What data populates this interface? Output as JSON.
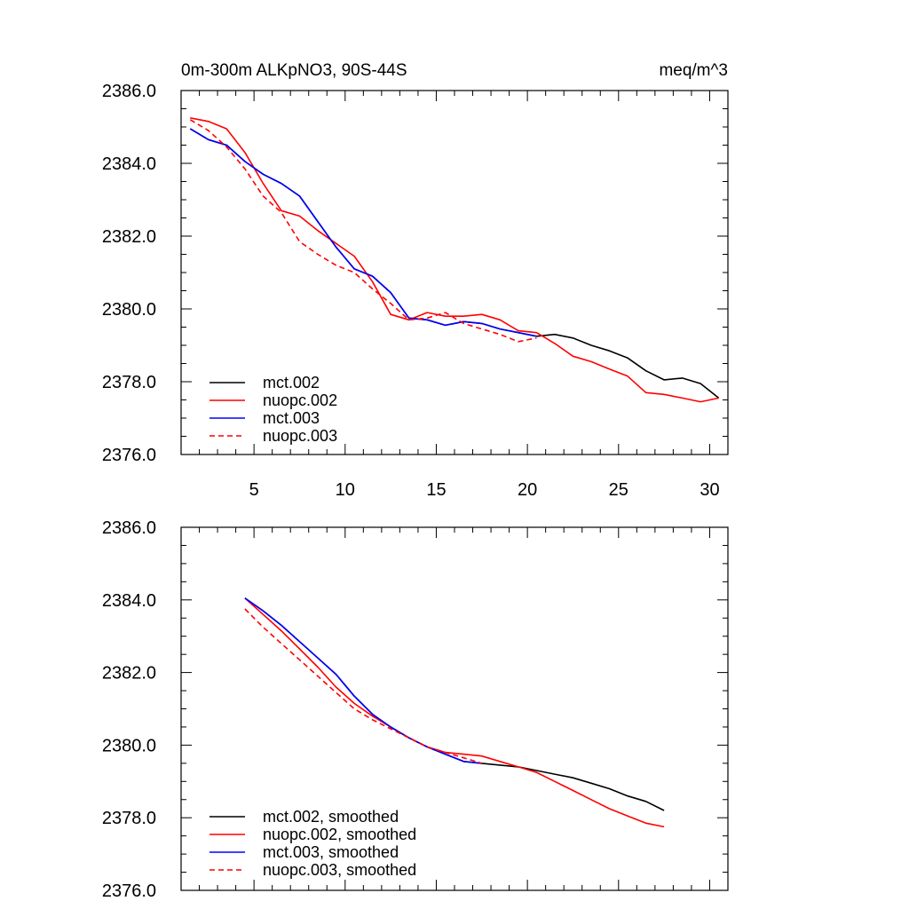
{
  "chart_data": [
    {
      "type": "line",
      "title_left": "0m-300m ALKpNO3, 90S-44S",
      "title_right": "meq/m^3",
      "xlim": [
        1,
        31
      ],
      "ylim": [
        2376,
        2386
      ],
      "x_ticks": [
        5,
        10,
        15,
        20,
        25,
        30
      ],
      "x_tick_labels": [
        "5",
        "10",
        "15",
        "20",
        "25",
        "30"
      ],
      "y_ticks": [
        2376,
        2378,
        2380,
        2382,
        2384,
        2386
      ],
      "y_tick_labels": [
        "2376.0",
        "2378.0",
        "2380.0",
        "2382.0",
        "2384.0",
        "2386.0"
      ],
      "legend_position": "bottom-left",
      "series": [
        {
          "name": "mct.002",
          "color": "#000000",
          "dash": "solid",
          "x": [
            1.5,
            2.5,
            3.5,
            4.5,
            5.5,
            6.5,
            7.5,
            8.5,
            9.5,
            10.5,
            11.5,
            12.5,
            13.5,
            14.5,
            15.5,
            16.5,
            17.5,
            18.5,
            19.5,
            20.5,
            21.5,
            22.5,
            23.5,
            24.5,
            25.5,
            26.5,
            27.5,
            28.5,
            29.5,
            30.5
          ],
          "y": [
            2384.95,
            2384.65,
            2384.5,
            2384.05,
            2383.7,
            2383.45,
            2383.1,
            2382.4,
            2381.7,
            2381.1,
            2380.9,
            2380.45,
            2379.75,
            2379.7,
            2379.55,
            2379.65,
            2379.6,
            2379.45,
            2379.35,
            2379.25,
            2379.3,
            2379.2,
            2379.0,
            2378.85,
            2378.65,
            2378.3,
            2378.05,
            2378.1,
            2377.95,
            2377.55
          ]
        },
        {
          "name": "nuopc.002",
          "color": "#ff0000",
          "dash": "solid",
          "x": [
            1.5,
            2.5,
            3.5,
            4.5,
            5.5,
            6.5,
            7.5,
            8.5,
            9.5,
            10.5,
            11.5,
            12.5,
            13.5,
            14.5,
            15.5,
            16.5,
            17.5,
            18.5,
            19.5,
            20.5,
            21.5,
            22.5,
            23.5,
            24.5,
            25.5,
            26.5,
            27.5,
            28.5,
            29.5,
            30.5
          ],
          "y": [
            2385.25,
            2385.15,
            2384.95,
            2384.3,
            2383.45,
            2382.7,
            2382.55,
            2382.15,
            2381.8,
            2381.45,
            2380.75,
            2379.85,
            2379.7,
            2379.9,
            2379.8,
            2379.8,
            2379.85,
            2379.7,
            2379.4,
            2379.35,
            2379.05,
            2378.7,
            2378.55,
            2378.35,
            2378.15,
            2377.7,
            2377.65,
            2377.55,
            2377.45,
            2377.55
          ]
        },
        {
          "name": "mct.003",
          "color": "#0000ff",
          "dash": "solid",
          "x": [
            1.5,
            2.5,
            3.5,
            4.5,
            5.5,
            6.5,
            7.5,
            8.5,
            9.5,
            10.5,
            11.5,
            12.5,
            13.5,
            14.5,
            15.5,
            16.5,
            17.5,
            18.5,
            19.5,
            20.5
          ],
          "y": [
            2384.95,
            2384.65,
            2384.5,
            2384.05,
            2383.7,
            2383.45,
            2383.1,
            2382.4,
            2381.7,
            2381.1,
            2380.9,
            2380.45,
            2379.75,
            2379.7,
            2379.55,
            2379.65,
            2379.6,
            2379.45,
            2379.35,
            2379.25
          ]
        },
        {
          "name": "nuopc.003",
          "color": "#ff0000",
          "dash": "dashed",
          "x": [
            1.5,
            2.5,
            3.5,
            4.5,
            5.5,
            6.5,
            7.5,
            8.5,
            9.5,
            10.5,
            11.5,
            12.5,
            13.5,
            14.5,
            15.5,
            16.5,
            17.5,
            18.5,
            19.5,
            20.5
          ],
          "y": [
            2385.2,
            2384.9,
            2384.45,
            2383.85,
            2383.1,
            2382.65,
            2381.85,
            2381.5,
            2381.2,
            2381.0,
            2380.55,
            2380.15,
            2379.7,
            2379.75,
            2379.9,
            2379.6,
            2379.45,
            2379.3,
            2379.1,
            2379.2
          ]
        }
      ]
    },
    {
      "type": "line",
      "xlim": [
        1,
        31
      ],
      "ylim": [
        2376,
        2386
      ],
      "x_ticks": [
        5,
        10,
        15,
        20,
        25,
        30
      ],
      "y_ticks": [
        2376,
        2378,
        2380,
        2382,
        2384,
        2386
      ],
      "y_tick_labels": [
        "2376.0",
        "2378.0",
        "2380.0",
        "2382.0",
        "2384.0",
        "2386.0"
      ],
      "legend_position": "bottom-left",
      "series": [
        {
          "name": "mct.002, smoothed",
          "color": "#000000",
          "dash": "solid",
          "x": [
            4.5,
            5.5,
            6.5,
            7.5,
            8.5,
            9.5,
            10.5,
            11.5,
            12.5,
            13.5,
            14.5,
            15.5,
            16.5,
            17.5,
            18.5,
            19.5,
            20.5,
            21.5,
            22.5,
            23.5,
            24.5,
            25.5,
            26.5,
            27.5
          ],
          "y": [
            2384.05,
            2383.7,
            2383.3,
            2382.85,
            2382.4,
            2381.95,
            2381.35,
            2380.85,
            2380.5,
            2380.2,
            2379.95,
            2379.75,
            2379.55,
            2379.5,
            2379.45,
            2379.4,
            2379.3,
            2379.2,
            2379.1,
            2378.95,
            2378.8,
            2378.6,
            2378.45,
            2378.2
          ]
        },
        {
          "name": "nuopc.002, smoothed",
          "color": "#ff0000",
          "dash": "solid",
          "x": [
            4.5,
            5.5,
            6.5,
            7.5,
            8.5,
            9.5,
            10.5,
            11.5,
            12.5,
            13.5,
            14.5,
            15.5,
            16.5,
            17.5,
            18.5,
            19.5,
            20.5,
            21.5,
            22.5,
            23.5,
            24.5,
            25.5,
            26.5,
            27.5
          ],
          "y": [
            2384.05,
            2383.6,
            2383.15,
            2382.65,
            2382.15,
            2381.6,
            2381.15,
            2380.8,
            2380.5,
            2380.2,
            2379.95,
            2379.8,
            2379.75,
            2379.7,
            2379.55,
            2379.4,
            2379.25,
            2379.0,
            2378.75,
            2378.5,
            2378.25,
            2378.05,
            2377.85,
            2377.75
          ]
        },
        {
          "name": "mct.003, smoothed",
          "color": "#0000ff",
          "dash": "solid",
          "x": [
            4.5,
            5.5,
            6.5,
            7.5,
            8.5,
            9.5,
            10.5,
            11.5,
            12.5,
            13.5,
            14.5,
            15.5,
            16.5,
            17.5
          ],
          "y": [
            2384.05,
            2383.7,
            2383.3,
            2382.85,
            2382.4,
            2381.95,
            2381.35,
            2380.85,
            2380.5,
            2380.2,
            2379.95,
            2379.75,
            2379.55,
            2379.5
          ]
        },
        {
          "name": "nuopc.003, smoothed",
          "color": "#ff0000",
          "dash": "dashed",
          "x": [
            4.5,
            5.5,
            6.5,
            7.5,
            8.5,
            9.5,
            10.5,
            11.5,
            12.5,
            13.5,
            14.5,
            15.5,
            16.5,
            17.5
          ],
          "y": [
            2383.75,
            2383.25,
            2382.8,
            2382.35,
            2381.9,
            2381.45,
            2381.0,
            2380.7,
            2380.45,
            2380.2,
            2379.95,
            2379.8,
            2379.65,
            2379.5
          ]
        }
      ]
    }
  ]
}
